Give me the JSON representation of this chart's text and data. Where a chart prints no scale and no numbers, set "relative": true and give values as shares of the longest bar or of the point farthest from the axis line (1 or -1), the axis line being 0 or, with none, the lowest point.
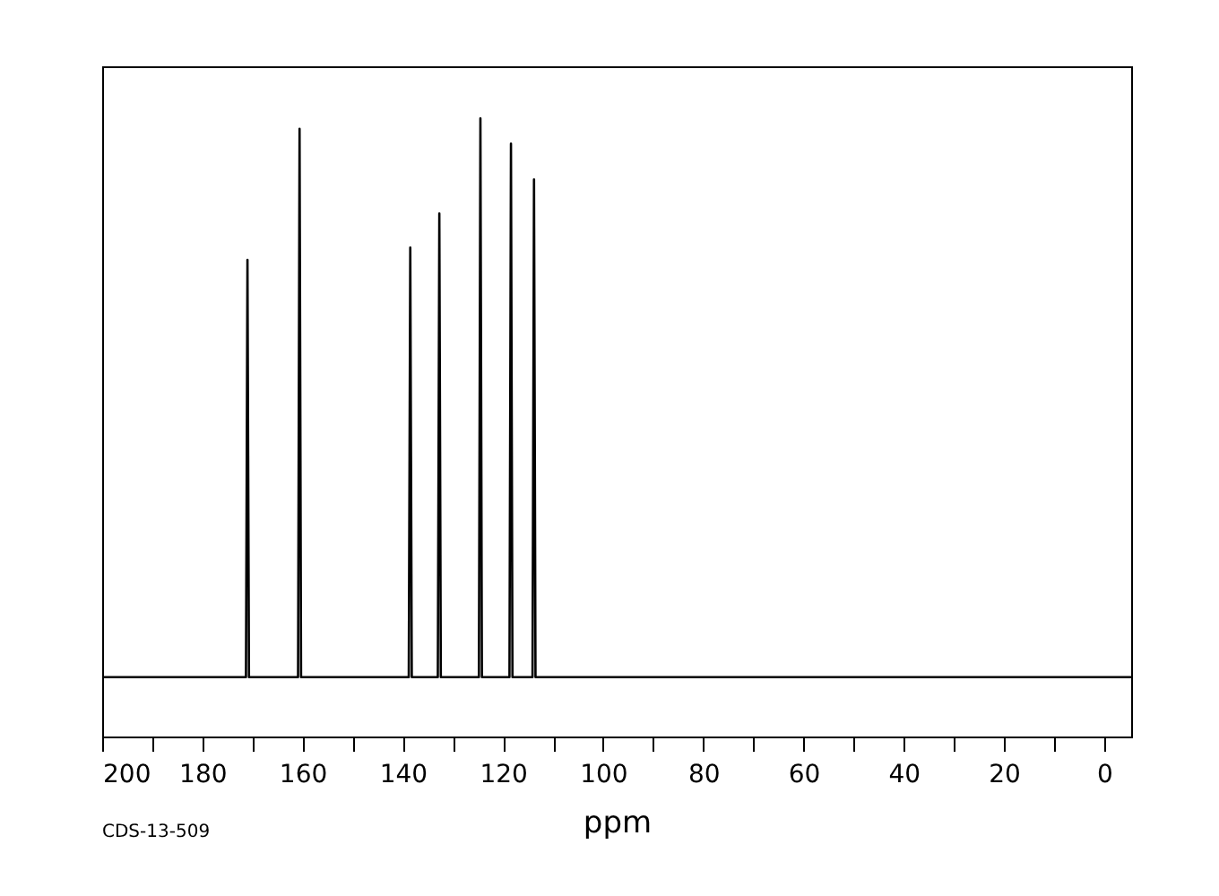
{
  "chart_data": {
    "type": "line",
    "relative": true,
    "xlabel": "ppm",
    "x": [
      200,
      171.3,
      171.0,
      170.7,
      160.9,
      160.6,
      160.3,
      138.8,
      138.5,
      138.2,
      133.0,
      132.7,
      132.4,
      124.8,
      124.5,
      124.2,
      118.7,
      118.4,
      118.1,
      114.1,
      113.8,
      113.5,
      -5.4
    ],
    "series": [
      {
        "color": "#000000",
        "values": [
          0.096,
          0.096,
          0.771,
          0.096,
          0.096,
          0.983,
          0.096,
          0.096,
          0.791,
          0.096,
          0.096,
          0.846,
          0.096,
          0.096,
          1,
          0.096,
          0.096,
          0.959,
          0.096,
          0.096,
          0.901,
          0.096,
          0.096
        ]
      }
    ],
    "xlim": [
      200,
      -5.4
    ],
    "xticks": [
      200,
      {
        "value": 190,
        "label": null
      },
      180,
      {
        "value": 170,
        "label": null
      },
      160,
      {
        "value": 150,
        "label": null
      },
      140,
      {
        "value": 130,
        "label": null
      },
      120,
      {
        "value": 110,
        "label": null
      },
      100,
      {
        "value": 90,
        "label": null
      },
      80,
      {
        "value": 70,
        "label": null
      },
      60,
      {
        "value": 50,
        "label": null
      },
      40,
      {
        "value": 30,
        "label": null
      },
      20,
      {
        "value": 10,
        "label": null
      },
      0
    ],
    "tick_labels": "x",
    "grid": false,
    "marker": "none",
    "line_style": "solid",
    "annotations": [
      "CDS-13-509"
    ]
  }
}
